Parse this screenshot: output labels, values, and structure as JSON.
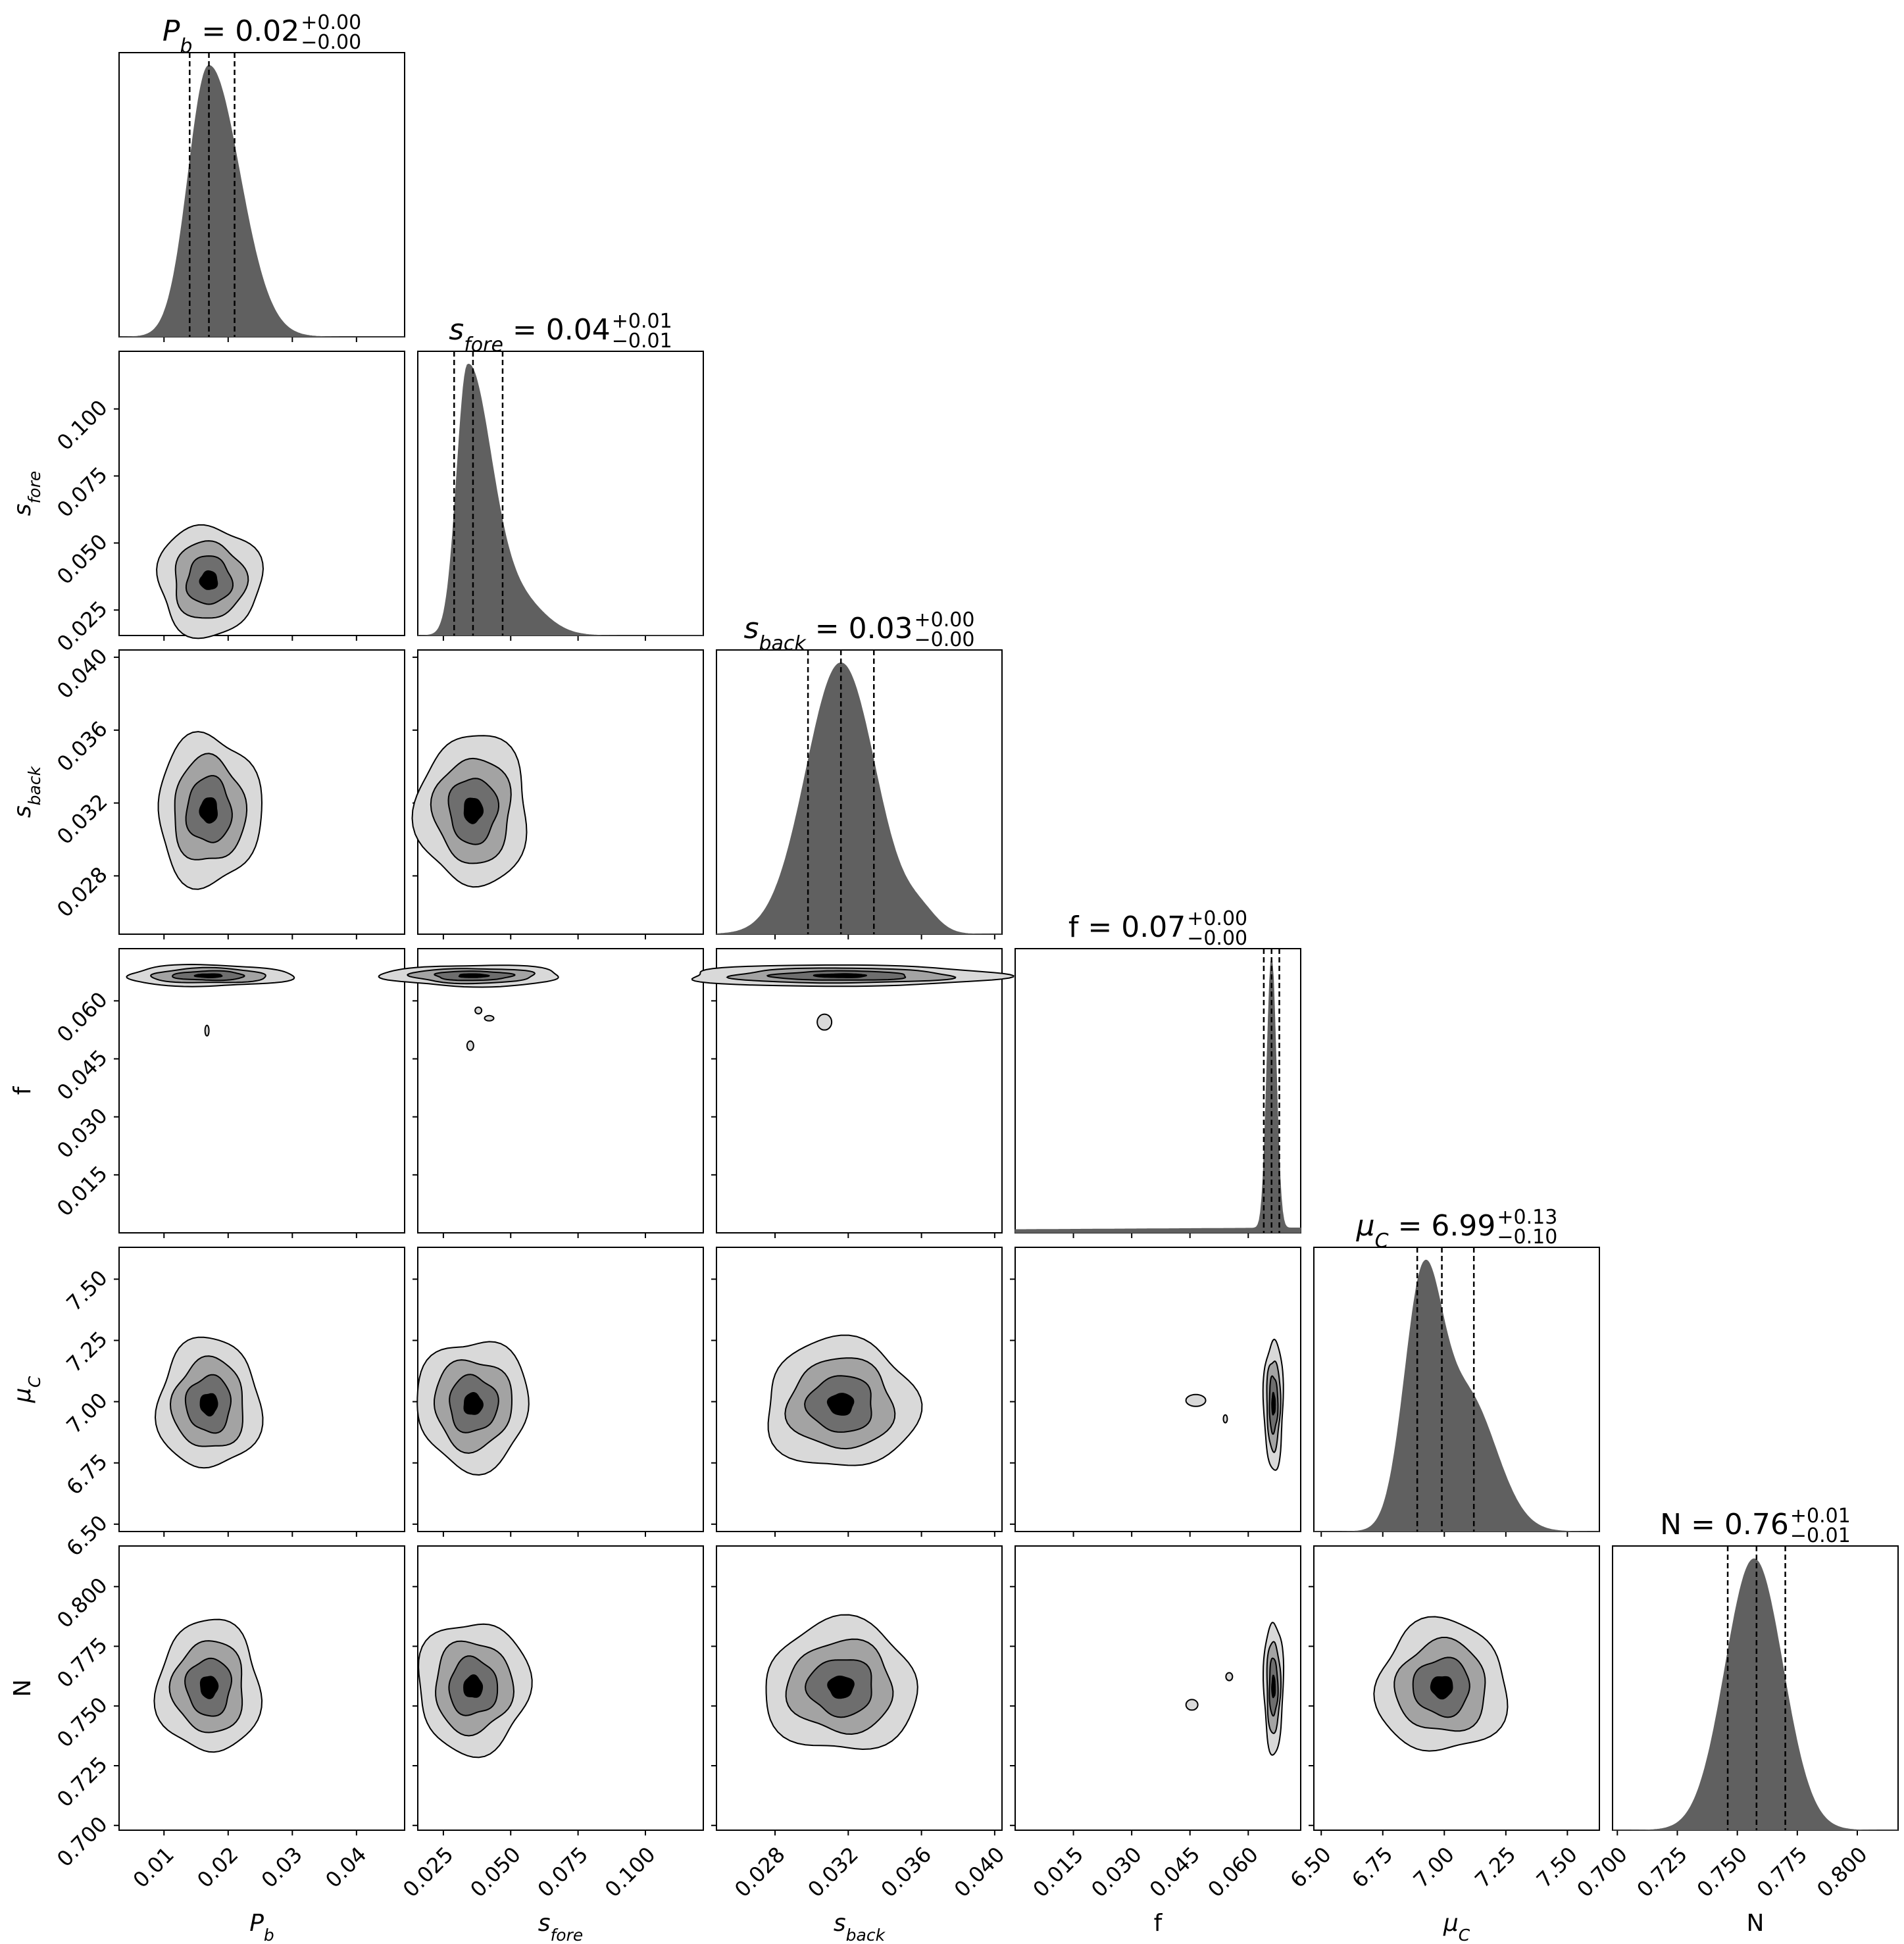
{
  "chart_data": {
    "type": "corner",
    "parameters": [
      {
        "key": "Pb",
        "label_main": "P",
        "label_sub": "b",
        "label_plain": "",
        "label_italic": true,
        "median": 0.017,
        "lo": 0.014,
        "hi": 0.021,
        "range": [
          0.003,
          0.0475
        ],
        "ticks": [
          0.01,
          0.02,
          0.03,
          0.04
        ],
        "tick_labels": [
          "0.01",
          "0.02",
          "0.03",
          "0.04"
        ],
        "title": {
          "value": "0.02",
          "plus": "+0.00",
          "minus": "−0.00"
        }
      },
      {
        "key": "sfore",
        "label_main": "s",
        "label_sub": "fore",
        "label_plain": "",
        "label_italic": true,
        "median": 0.036,
        "lo": 0.029,
        "hi": 0.047,
        "range": [
          0.0155,
          0.1215
        ],
        "ticks": [
          0.025,
          0.05,
          0.075,
          0.1
        ],
        "tick_labels": [
          "0.025",
          "0.050",
          "0.075",
          "0.100"
        ],
        "title": {
          "value": "0.04",
          "plus": "+0.01",
          "minus": "−0.01"
        }
      },
      {
        "key": "sback",
        "label_main": "s",
        "label_sub": "back",
        "label_plain": "",
        "label_italic": true,
        "median": 0.0316,
        "lo": 0.0298,
        "hi": 0.0334,
        "range": [
          0.0248,
          0.0404
        ],
        "ticks": [
          0.028,
          0.032,
          0.036,
          0.04
        ],
        "tick_labels": [
          "0.028",
          "0.032",
          "0.036",
          "0.040"
        ],
        "title": {
          "value": "0.03",
          "plus": "+0.00",
          "minus": "−0.00"
        }
      },
      {
        "key": "f",
        "label_main": "",
        "label_sub": "",
        "label_plain": "f",
        "label_italic": false,
        "median": 0.066,
        "lo": 0.064,
        "hi": 0.068,
        "range": [
          0.0,
          0.0735
        ],
        "ticks": [
          0.015,
          0.03,
          0.045,
          0.06
        ],
        "tick_labels": [
          "0.015",
          "0.030",
          "0.045",
          "0.060"
        ],
        "title": {
          "value": "0.07",
          "plus": "+0.00",
          "minus": "−0.00"
        }
      },
      {
        "key": "muC",
        "label_main": "μ",
        "label_sub": "C",
        "label_plain": "",
        "label_italic": true,
        "median": 6.99,
        "lo": 6.89,
        "hi": 7.12,
        "range": [
          6.47,
          7.63
        ],
        "ticks": [
          6.5,
          6.75,
          7.0,
          7.25,
          7.5
        ],
        "tick_labels": [
          "6.50",
          "6.75",
          "7.00",
          "7.25",
          "7.50"
        ],
        "title": {
          "value": "6.99",
          "plus": "+0.13",
          "minus": "−0.10"
        }
      },
      {
        "key": "N",
        "label_main": "",
        "label_sub": "",
        "label_plain": "N",
        "label_italic": false,
        "median": 0.758,
        "lo": 0.746,
        "hi": 0.77,
        "range": [
          0.698,
          0.817
        ],
        "ticks": [
          0.7,
          0.725,
          0.75,
          0.775,
          0.8
        ],
        "tick_labels": [
          "0.700",
          "0.725",
          "0.750",
          "0.775",
          "0.800"
        ],
        "title": {
          "value": "0.76",
          "plus": "+0.01",
          "minus": "−0.01"
        }
      }
    ],
    "contour_levels": 4,
    "colors": {
      "hist_fill": "#606060",
      "level_fills": [
        "#d9d9d9",
        "#a3a3a3",
        "#6e6e6e",
        "#000000"
      ],
      "line": "#000000",
      "quantile_line": "#000000"
    }
  }
}
